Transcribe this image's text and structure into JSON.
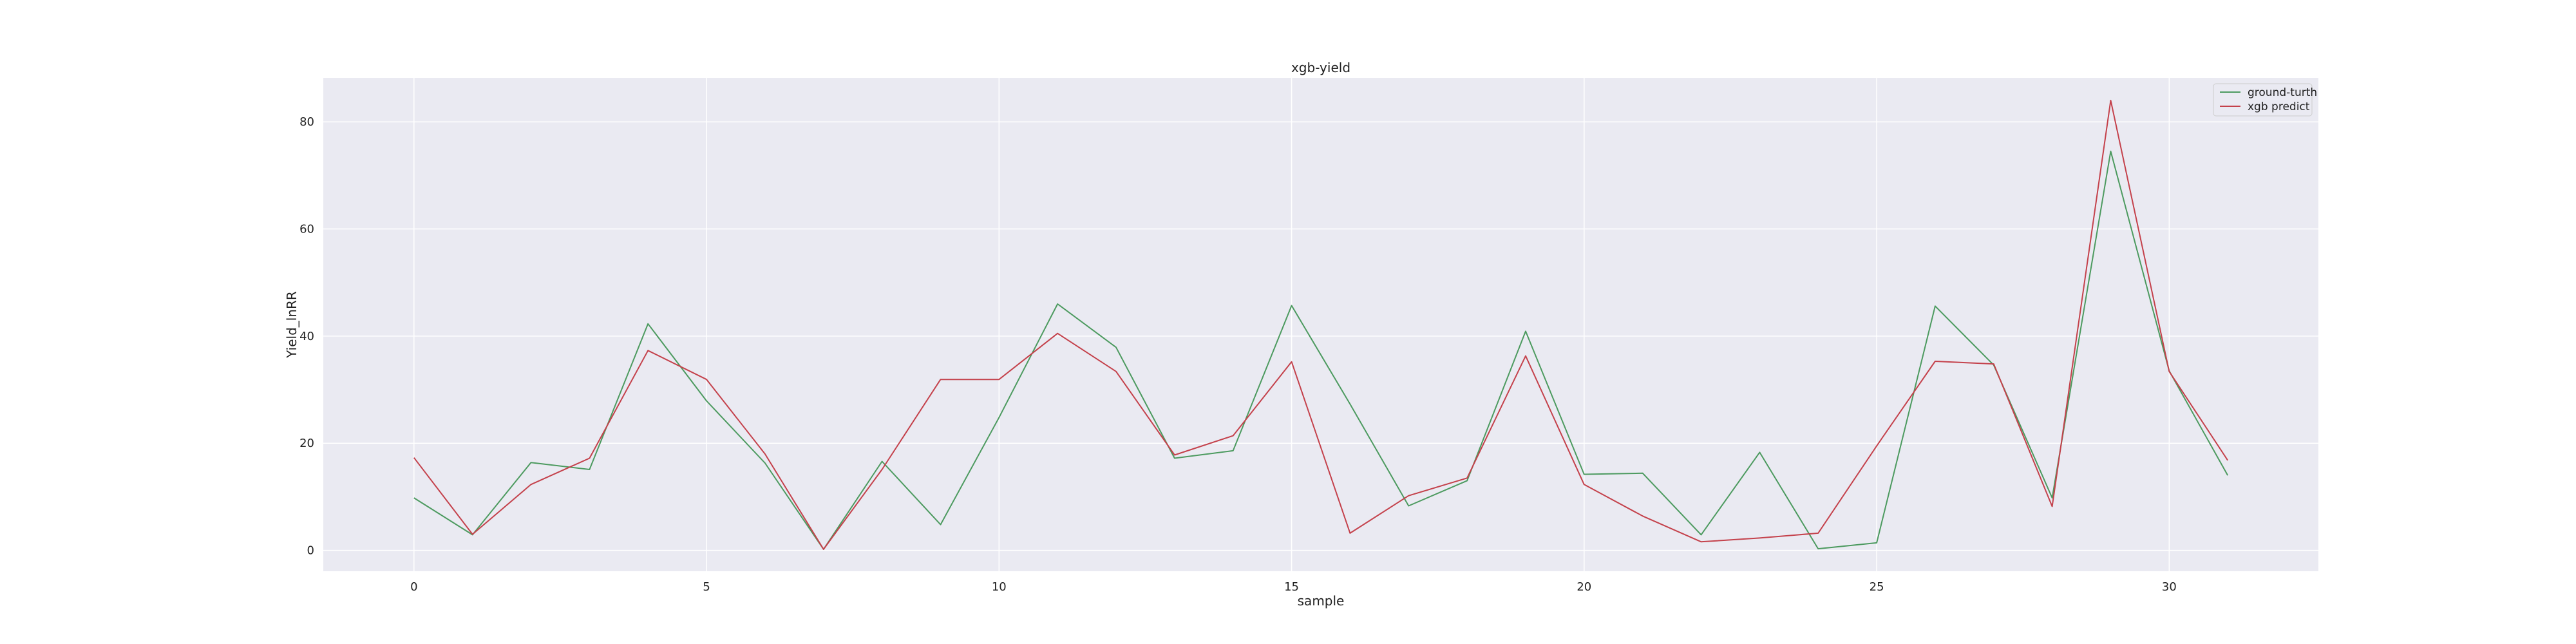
{
  "chart_data": {
    "type": "line",
    "title": "xgb-yield",
    "xlabel": "sample",
    "ylabel": "Yield_lnRR",
    "xlim": [
      -1.55,
      32.55
    ],
    "ylim": [
      -3.9,
      88.2
    ],
    "xticks": [
      0,
      5,
      10,
      15,
      20,
      25,
      30
    ],
    "yticks": [
      0,
      20,
      40,
      60,
      80
    ],
    "grid": true,
    "legend_position": "top-right",
    "background": "#eaeaf2",
    "x": [
      0,
      1,
      2,
      3,
      4,
      5,
      6,
      7,
      8,
      9,
      10,
      11,
      12,
      13,
      14,
      15,
      16,
      17,
      18,
      19,
      20,
      21,
      22,
      23,
      24,
      25,
      26,
      27,
      28,
      29,
      30,
      31
    ],
    "series": [
      {
        "name": "ground-turth",
        "color": "#4c9a5f",
        "values": [
          9.8,
          2.9,
          16.4,
          15.1,
          42.3,
          27.9,
          16.3,
          0.2,
          16.6,
          4.8,
          24.8,
          46.0,
          37.9,
          17.2,
          18.6,
          45.7,
          27.3,
          8.3,
          13.0,
          40.9,
          14.2,
          14.4,
          2.9,
          18.3,
          0.3,
          1.4,
          45.6,
          34.6,
          9.8,
          74.5,
          33.5,
          14.0
        ]
      },
      {
        "name": "xgb predict",
        "color": "#c4414b",
        "values": [
          17.3,
          3.0,
          12.3,
          17.2,
          37.3,
          31.9,
          18.0,
          0.2,
          15.1,
          31.9,
          31.9,
          40.5,
          33.4,
          17.8,
          21.4,
          35.2,
          3.2,
          10.2,
          13.5,
          36.3,
          12.3,
          6.4,
          1.6,
          2.3,
          3.2,
          19.5,
          35.3,
          34.8,
          8.2,
          84.0,
          33.4,
          16.8
        ]
      }
    ]
  }
}
